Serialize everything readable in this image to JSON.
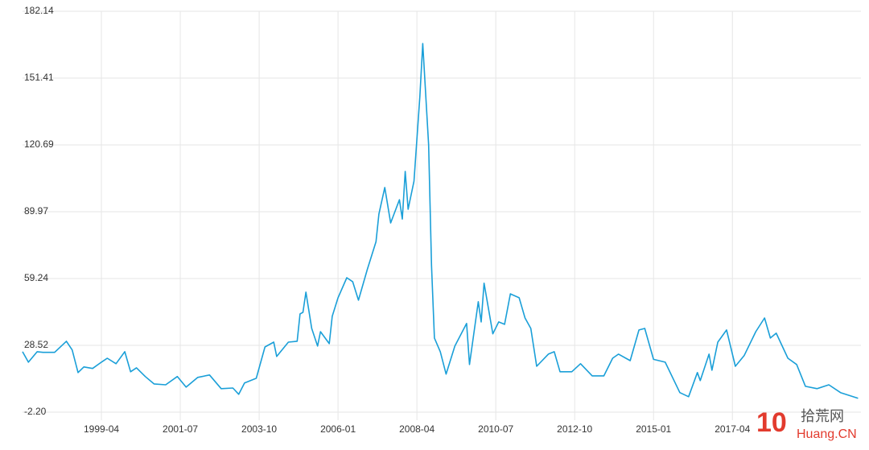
{
  "chart_data": {
    "type": "line",
    "x": [
      "1997-01",
      "1997-03",
      "1997-06",
      "1997-08",
      "1997-12",
      "1998-04",
      "1998-06",
      "1998-08",
      "1998-10",
      "1999-01",
      "1999-04",
      "1999-06",
      "1999-09",
      "1999-12",
      "2000-02",
      "2000-04",
      "2000-07",
      "2000-10",
      "2001-02",
      "2001-06",
      "2001-09",
      "2002-01",
      "2002-05",
      "2002-09",
      "2003-01",
      "2003-03",
      "2003-05",
      "2003-09",
      "2003-12",
      "2004-03",
      "2004-04",
      "2004-08",
      "2004-11",
      "2004-12",
      "2005-01",
      "2005-02",
      "2005-04",
      "2005-06",
      "2005-07",
      "2005-10",
      "2005-11",
      "2006-01",
      "2006-04",
      "2006-06",
      "2006-08",
      "2006-11",
      "2007-02",
      "2007-03",
      "2007-05",
      "2007-07",
      "2007-10",
      "2007-11",
      "2007-12",
      "2008-01",
      "2008-03",
      "2008-05",
      "2008-06",
      "2008-08",
      "2008-09",
      "2008-10",
      "2008-12",
      "2009-02",
      "2009-05",
      "2009-09",
      "2009-10",
      "2010-01",
      "2010-02",
      "2010-03",
      "2010-06",
      "2010-08",
      "2010-10",
      "2010-12",
      "2011-03",
      "2011-05",
      "2011-07",
      "2011-09",
      "2012-01",
      "2012-03",
      "2012-05",
      "2012-09",
      "2012-12",
      "2013-04",
      "2013-08",
      "2013-11",
      "2014-01",
      "2014-05",
      "2014-08",
      "2014-10",
      "2015-01",
      "2015-05",
      "2015-10",
      "2016-01",
      "2016-04",
      "2016-05",
      "2016-08",
      "2016-09",
      "2016-11",
      "2017-02",
      "2017-05",
      "2017-08",
      "2017-12",
      "2018-03",
      "2018-05",
      "2018-07",
      "2018-11",
      "2019-02",
      "2019-05",
      "2019-09",
      "2020-01",
      "2020-05",
      "2020-11"
    ],
    "values": [
      25.6,
      20.8,
      25.6,
      25.3,
      25.3,
      30.4,
      26.4,
      16.0,
      18.6,
      17.9,
      20.8,
      22.6,
      20.1,
      25.6,
      16.4,
      18.2,
      14.2,
      10.8,
      10.4,
      14.2,
      9.3,
      13.8,
      14.9,
      8.6,
      8.9,
      6.0,
      11.2,
      13.4,
      27.8,
      30.0,
      23.4,
      30.0,
      30.4,
      43.0,
      43.7,
      53.0,
      36.3,
      28.2,
      34.8,
      29.3,
      41.9,
      50.4,
      59.6,
      57.8,
      49.3,
      63.3,
      76.2,
      88.9,
      101.1,
      84.8,
      95.5,
      86.6,
      108.5,
      91.1,
      104.0,
      142.9,
      167.3,
      120.7,
      65.2,
      31.9,
      25.6,
      15.3,
      28.2,
      38.6,
      19.7,
      48.6,
      39.3,
      57.1,
      33.8,
      39.3,
      38.2,
      52.2,
      50.4,
      41.1,
      36.3,
      18.9,
      24.5,
      25.6,
      16.4,
      16.4,
      20.1,
      14.5,
      14.5,
      22.6,
      24.5,
      21.5,
      35.6,
      36.3,
      22.1,
      20.8,
      6.8,
      4.9,
      16.0,
      12.3,
      24.5,
      17.1,
      30.0,
      35.6,
      18.9,
      23.8,
      34.8,
      41.1,
      31.9,
      34.1,
      22.6,
      19.7,
      9.7,
      8.6,
      10.4,
      6.8,
      4.2
    ],
    "color": "#1a9fd8",
    "xlim": [
      "1997-01",
      "2020-12"
    ],
    "xticks": [
      "1999-04",
      "2001-07",
      "2003-10",
      "2006-01",
      "2008-04",
      "2010-07",
      "2012-10",
      "2015-01",
      "2017-04"
    ],
    "ylim": [
      -2.2,
      182.14
    ],
    "yticks": [
      {
        "value": -2.2,
        "label": "-2.20"
      },
      28.52,
      59.24,
      89.97,
      120.69,
      151.41,
      182.14
    ],
    "grid": true
  },
  "watermark": {
    "logo": "10",
    "name": "拾荒网",
    "site": "Huang.CN"
  }
}
